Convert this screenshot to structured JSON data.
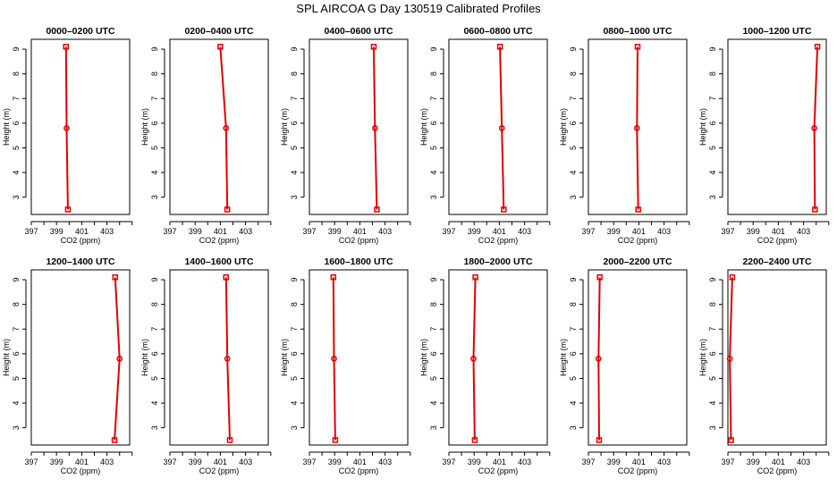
{
  "title": "SPL AIRCOA G  Day 130519  Calibrated Profiles",
  "colors": {
    "series": "#e00000",
    "axis": "#000000"
  },
  "chart_data": [
    {
      "type": "line",
      "title": "0000–0200 UTC",
      "xlabel": "CO2 (ppm)",
      "ylabel": "Height (m)",
      "xlim": [
        397,
        404.8
      ],
      "ylim": [
        2.3,
        9.4
      ],
      "xticks": [
        "397",
        "399",
        "401",
        "403"
      ],
      "yticks": [
        "3",
        "4",
        "5",
        "6",
        "7",
        "8",
        "9"
      ],
      "x": [
        399.75,
        399.8,
        399.9
      ],
      "y": [
        9.1,
        5.8,
        2.5
      ]
    },
    {
      "type": "line",
      "title": "0200–0400 UTC",
      "xlabel": "CO2 (ppm)",
      "ylabel": "Height (m)",
      "xlim": [
        397,
        404.8
      ],
      "ylim": [
        2.3,
        9.4
      ],
      "xticks": [
        "397",
        "399",
        "401",
        "403"
      ],
      "yticks": [
        "3",
        "4",
        "5",
        "6",
        "7",
        "8",
        "9"
      ],
      "x": [
        401.0,
        401.45,
        401.55
      ],
      "y": [
        9.1,
        5.8,
        2.5
      ]
    },
    {
      "type": "line",
      "title": "0400–0600 UTC",
      "xlabel": "CO2 (ppm)",
      "ylabel": "Height (m)",
      "xlim": [
        397,
        404.8
      ],
      "ylim": [
        2.3,
        9.4
      ],
      "xticks": [
        "397",
        "399",
        "401",
        "403"
      ],
      "yticks": [
        "3",
        "4",
        "5",
        "6",
        "7",
        "8",
        "9"
      ],
      "x": [
        402.1,
        402.2,
        402.35
      ],
      "y": [
        9.1,
        5.8,
        2.5
      ]
    },
    {
      "type": "line",
      "title": "0600–0800 UTC",
      "xlabel": "CO2 (ppm)",
      "ylabel": "Height (m)",
      "xlim": [
        397,
        404.8
      ],
      "ylim": [
        2.3,
        9.4
      ],
      "xticks": [
        "397",
        "399",
        "401",
        "403"
      ],
      "yticks": [
        "3",
        "4",
        "5",
        "6",
        "7",
        "8",
        "9"
      ],
      "x": [
        401.05,
        401.2,
        401.35
      ],
      "y": [
        9.1,
        5.8,
        2.5
      ]
    },
    {
      "type": "line",
      "title": "0800–1000 UTC",
      "xlabel": "CO2 (ppm)",
      "ylabel": "Height (m)",
      "xlim": [
        397,
        404.8
      ],
      "ylim": [
        2.3,
        9.4
      ],
      "xticks": [
        "397",
        "399",
        "401",
        "403"
      ],
      "yticks": [
        "3",
        "4",
        "5",
        "6",
        "7",
        "8",
        "9"
      ],
      "x": [
        400.9,
        400.85,
        400.95
      ],
      "y": [
        9.1,
        5.8,
        2.5
      ]
    },
    {
      "type": "line",
      "title": "1000–1200 UTC",
      "xlabel": "CO2 (ppm)",
      "ylabel": "Height (m)",
      "xlim": [
        397,
        404.8
      ],
      "ylim": [
        2.3,
        9.4
      ],
      "xticks": [
        "397",
        "399",
        "401",
        "403"
      ],
      "yticks": [
        "3",
        "4",
        "5",
        "6",
        "7",
        "8",
        "9"
      ],
      "x": [
        404.1,
        403.85,
        403.9
      ],
      "y": [
        9.1,
        5.8,
        2.5
      ]
    },
    {
      "type": "line",
      "title": "1200–1400 UTC",
      "xlabel": "CO2 (ppm)",
      "ylabel": "Height (m)",
      "xlim": [
        397,
        404.8
      ],
      "ylim": [
        2.3,
        9.4
      ],
      "xticks": [
        "397",
        "399",
        "401",
        "403"
      ],
      "yticks": [
        "3",
        "4",
        "5",
        "6",
        "7",
        "8",
        "9"
      ],
      "x": [
        403.65,
        404.0,
        403.6
      ],
      "y": [
        9.1,
        5.8,
        2.5
      ]
    },
    {
      "type": "line",
      "title": "1400–1600 UTC",
      "xlabel": "CO2 (ppm)",
      "ylabel": "Height (m)",
      "xlim": [
        397,
        404.8
      ],
      "ylim": [
        2.3,
        9.4
      ],
      "xticks": [
        "397",
        "399",
        "401",
        "403"
      ],
      "yticks": [
        "3",
        "4",
        "5",
        "6",
        "7",
        "8",
        "9"
      ],
      "x": [
        401.45,
        401.55,
        401.75
      ],
      "y": [
        9.1,
        5.8,
        2.5
      ]
    },
    {
      "type": "line",
      "title": "1600–1800 UTC",
      "xlabel": "CO2 (ppm)",
      "ylabel": "Height (m)",
      "xlim": [
        397,
        404.8
      ],
      "ylim": [
        2.3,
        9.4
      ],
      "xticks": [
        "397",
        "399",
        "401",
        "403"
      ],
      "yticks": [
        "3",
        "4",
        "5",
        "6",
        "7",
        "8",
        "9"
      ],
      "x": [
        398.9,
        398.95,
        399.05
      ],
      "y": [
        9.1,
        5.8,
        2.5
      ]
    },
    {
      "type": "line",
      "title": "1800–2000 UTC",
      "xlabel": "CO2 (ppm)",
      "ylabel": "Height (m)",
      "xlim": [
        397,
        404.8
      ],
      "ylim": [
        2.3,
        9.4
      ],
      "xticks": [
        "397",
        "399",
        "401",
        "403"
      ],
      "yticks": [
        "3",
        "4",
        "5",
        "6",
        "7",
        "8",
        "9"
      ],
      "x": [
        399.1,
        398.95,
        399.05
      ],
      "y": [
        9.1,
        5.8,
        2.5
      ]
    },
    {
      "type": "line",
      "title": "2000–2200 UTC",
      "xlabel": "CO2 (ppm)",
      "ylabel": "Height (m)",
      "xlim": [
        397,
        404.8
      ],
      "ylim": [
        2.3,
        9.4
      ],
      "xticks": [
        "397",
        "399",
        "401",
        "403"
      ],
      "yticks": [
        "3",
        "4",
        "5",
        "6",
        "7",
        "8",
        "9"
      ],
      "x": [
        397.9,
        397.8,
        397.85
      ],
      "y": [
        9.1,
        5.8,
        2.5
      ]
    },
    {
      "type": "line",
      "title": "2200–2400 UTC",
      "xlabel": "CO2 (ppm)",
      "ylabel": "Height (m)",
      "xlim": [
        397,
        404.8
      ],
      "ylim": [
        2.3,
        9.4
      ],
      "xticks": [
        "397",
        "399",
        "401",
        "403"
      ],
      "yticks": [
        "3",
        "4",
        "5",
        "6",
        "7",
        "8",
        "9"
      ],
      "x": [
        397.35,
        397.15,
        397.25
      ],
      "y": [
        9.1,
        5.8,
        2.5
      ]
    }
  ]
}
